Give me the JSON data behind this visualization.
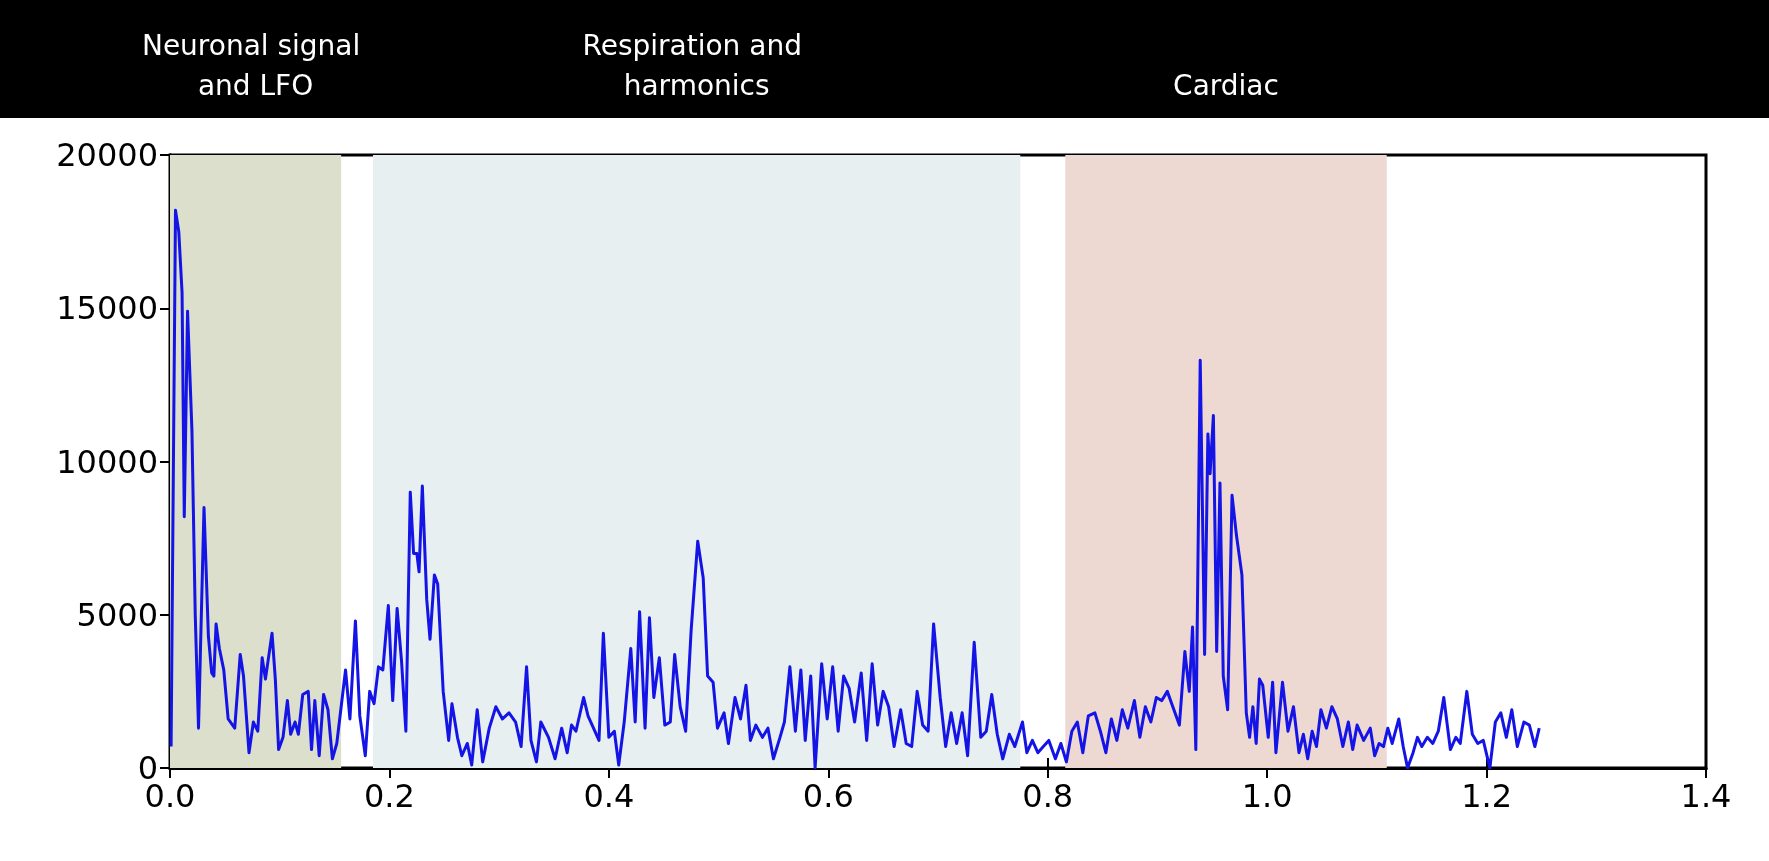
{
  "chart_data": {
    "type": "line",
    "x": [
      0.001,
      0.005,
      0.008,
      0.011,
      0.013,
      0.016,
      0.02,
      0.023,
      0.026,
      0.031,
      0.035,
      0.038,
      0.04,
      0.042,
      0.045,
      0.049,
      0.053,
      0.059,
      0.064,
      0.067,
      0.072,
      0.076,
      0.08,
      0.084,
      0.087,
      0.093,
      0.096,
      0.099,
      0.103,
      0.107,
      0.11,
      0.114,
      0.117,
      0.121,
      0.126,
      0.129,
      0.132,
      0.136,
      0.14,
      0.144,
      0.148,
      0.152,
      0.156,
      0.16,
      0.164,
      0.169,
      0.173,
      0.178,
      0.182,
      0.186,
      0.19,
      0.194,
      0.199,
      0.203,
      0.207,
      0.211,
      0.215,
      0.219,
      0.222,
      0.225,
      0.227,
      0.23,
      0.234,
      0.237,
      0.241,
      0.244,
      0.249,
      0.254,
      0.257,
      0.262,
      0.266,
      0.271,
      0.275,
      0.28,
      0.285,
      0.291,
      0.297,
      0.303,
      0.309,
      0.315,
      0.32,
      0.325,
      0.329,
      0.334,
      0.338,
      0.345,
      0.351,
      0.357,
      0.362,
      0.366,
      0.37,
      0.377,
      0.381,
      0.386,
      0.391,
      0.395,
      0.4,
      0.405,
      0.409,
      0.414,
      0.42,
      0.424,
      0.428,
      0.433,
      0.437,
      0.441,
      0.446,
      0.451,
      0.456,
      0.46,
      0.465,
      0.47,
      0.475,
      0.481,
      0.486,
      0.49,
      0.495,
      0.499,
      0.505,
      0.509,
      0.515,
      0.52,
      0.525,
      0.529,
      0.534,
      0.54,
      0.545,
      0.55,
      0.556,
      0.56,
      0.565,
      0.57,
      0.575,
      0.579,
      0.584,
      0.588,
      0.594,
      0.599,
      0.604,
      0.609,
      0.614,
      0.619,
      0.624,
      0.63,
      0.635,
      0.64,
      0.645,
      0.65,
      0.655,
      0.66,
      0.666,
      0.671,
      0.676,
      0.681,
      0.686,
      0.691,
      0.696,
      0.702,
      0.707,
      0.712,
      0.717,
      0.722,
      0.727,
      0.733,
      0.739,
      0.744,
      0.749,
      0.754,
      0.759,
      0.765,
      0.77,
      0.777,
      0.781,
      0.786,
      0.791,
      0.796,
      0.801,
      0.807,
      0.812,
      0.817,
      0.822,
      0.827,
      0.832,
      0.837,
      0.843,
      0.848,
      0.853,
      0.858,
      0.863,
      0.868,
      0.873,
      0.879,
      0.884,
      0.889,
      0.894,
      0.899,
      0.904,
      0.909,
      0.915,
      0.92,
      0.925,
      0.929,
      0.932,
      0.935,
      0.939,
      0.943,
      0.946,
      0.948,
      0.951,
      0.954,
      0.957,
      0.96,
      0.964,
      0.968,
      0.972,
      0.977,
      0.981,
      0.984,
      0.987,
      0.99,
      0.993,
      0.996,
      1.001,
      1.005,
      1.008,
      1.014,
      1.019,
      1.024,
      1.029,
      1.033,
      1.037,
      1.041,
      1.045,
      1.049,
      1.054,
      1.059,
      1.064,
      1.069,
      1.074,
      1.078,
      1.082,
      1.088,
      1.094,
      1.098,
      1.102,
      1.106,
      1.11,
      1.114,
      1.12,
      1.124,
      1.128,
      1.133,
      1.137,
      1.141,
      1.146,
      1.151,
      1.156,
      1.161,
      1.167,
      1.172,
      1.176,
      1.182,
      1.187,
      1.192,
      1.197,
      1.203,
      1.208,
      1.213,
      1.218,
      1.223,
      1.228,
      1.234,
      1.239,
      1.244,
      1.248
    ],
    "series": [
      {
        "color": "#1414e6",
        "values": [
          700,
          18200,
          17500,
          15500,
          8200,
          14900,
          11000,
          5000,
          1300,
          8500,
          4300,
          3100,
          3000,
          4700,
          3900,
          3200,
          1600,
          1300,
          3700,
          3000,
          500,
          1500,
          1200,
          3600,
          2900,
          4400,
          2900,
          600,
          1000,
          2200,
          1100,
          1500,
          1100,
          2400,
          2500,
          600,
          2200,
          400,
          2400,
          1900,
          300,
          800,
          2000,
          3200,
          1600,
          4800,
          1700,
          400,
          2500,
          2100,
          3300,
          3200,
          5300,
          2200,
          5200,
          3500,
          1200,
          9000,
          7000,
          7000,
          6400,
          9200,
          5500,
          4200,
          6300,
          6000,
          2500,
          900,
          2100,
          1000,
          400,
          800,
          100,
          1900,
          200,
          1300,
          2000,
          1600,
          1800,
          1500,
          700,
          3300,
          900,
          200,
          1500,
          1000,
          300,
          1300,
          500,
          1400,
          1200,
          2300,
          1700,
          1300,
          900,
          4400,
          1000,
          1200,
          100,
          1500,
          3900,
          1500,
          5100,
          1300,
          4900,
          2300,
          3600,
          1400,
          1500,
          3700,
          2000,
          1200,
          4500,
          7400,
          6200,
          3000,
          2800,
          1300,
          1800,
          800,
          2300,
          1600,
          2700,
          900,
          1400,
          1000,
          1300,
          300,
          1000,
          1500,
          3300,
          1200,
          3200,
          900,
          3000,
          0,
          3400,
          1600,
          3300,
          1200,
          3000,
          2600,
          1500,
          3100,
          900,
          3400,
          1400,
          2500,
          2000,
          700,
          1900,
          800,
          700,
          2500,
          1400,
          1200,
          4700,
          2300,
          700,
          1800,
          800,
          1800,
          400,
          4100,
          1000,
          1200,
          2400,
          1100,
          300,
          1100,
          700,
          1500,
          500,
          900,
          500,
          700,
          900,
          300,
          800,
          200,
          1200,
          1500,
          500,
          1700,
          1800,
          1200,
          500,
          1600,
          900,
          1900,
          1300,
          2200,
          1000,
          2000,
          1500,
          2300,
          2200,
          2500,
          1900,
          1400,
          3800,
          2500,
          4600,
          600,
          13300,
          3700,
          10900,
          9600,
          11500,
          3800,
          9300,
          3000,
          1900,
          8900,
          7600,
          6300,
          1800,
          1000,
          2000,
          800,
          2900,
          2700,
          1000,
          2800,
          500,
          2800,
          1200,
          2000,
          500,
          1100,
          300,
          1200,
          700,
          1900,
          1300,
          2000,
          1600,
          700,
          1500,
          600,
          1400,
          900,
          1300,
          400,
          800,
          700,
          1300,
          800,
          1600,
          700,
          0,
          500,
          1000,
          700,
          1000,
          800,
          1200,
          2300,
          600,
          1000,
          800,
          2500,
          1100,
          800,
          900,
          0,
          1500,
          1800,
          1000,
          1900,
          700,
          1500,
          1400,
          700,
          1300
        ]
      }
    ],
    "xlim": [
      0,
      1.4
    ],
    "xticks": [
      {
        "value": 0,
        "label": "0.0"
      },
      0.2,
      0.4,
      0.6,
      0.8,
      {
        "value": 1,
        "label": "1.0"
      },
      1.2,
      1.4
    ],
    "ylim": [
      0,
      20000
    ],
    "yticks": [
      0,
      5000,
      10000,
      15000,
      20000
    ],
    "bands": [
      {
        "axis": "x",
        "from": 0,
        "to": 0.156,
        "label": "Neuronal signal and LFO",
        "color": "#dcdfcc"
      },
      {
        "axis": "x",
        "from": 0.185,
        "to": 0.775,
        "label": "Respiration and harmonics",
        "color": "#e8eff0"
      },
      {
        "axis": "x",
        "from": 0.816,
        "to": 1.109,
        "label": "Cardiac",
        "color": "#eed9d2"
      }
    ],
    "grid": false,
    "marker": "none",
    "line_style": "solid"
  }
}
